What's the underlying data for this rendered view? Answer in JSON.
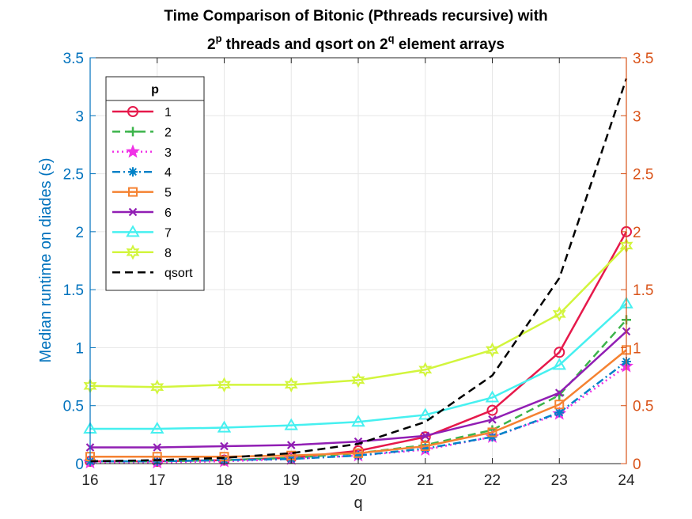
{
  "chart_data": {
    "type": "line",
    "title_line1": "Time Comparison of Bitonic (Pthreads recursive) with",
    "title_line2": {
      "part1": "2",
      "sup1": "p",
      "part2": " threads and qsort on 2",
      "sup2": "q",
      "part3": " element arrays"
    },
    "xlabel": "q",
    "ylabel": "Median runtime on diades (s)",
    "x": [
      16,
      17,
      18,
      19,
      20,
      21,
      22,
      23,
      24
    ],
    "xlim": [
      16,
      24
    ],
    "ylim": [
      0,
      3.5
    ],
    "xticks": [
      "16",
      "17",
      "18",
      "19",
      "20",
      "21",
      "22",
      "23",
      "24"
    ],
    "yticks_left": [
      "0",
      "0.5",
      "1",
      "1.5",
      "2",
      "2.5",
      "3",
      "3.5"
    ],
    "yticks_right": [
      "0",
      "0.5",
      "1",
      "1.5",
      "2",
      "2.5",
      "3",
      "3.5"
    ],
    "grid": true,
    "legend_title": "p",
    "legend_location": "top-left",
    "colors": {
      "left_axis": "#0072BD",
      "right_axis": "#D95319",
      "grid": "#e6e6e6"
    },
    "series": [
      {
        "name": "1",
        "color": "#E6194B",
        "dash": "solid",
        "marker": "circle",
        "values": [
          0.02,
          0.02,
          0.03,
          0.05,
          0.11,
          0.23,
          0.46,
          0.96,
          2.0
        ]
      },
      {
        "name": "2",
        "color": "#3CB44B",
        "dash": "dashed",
        "marker": "plus",
        "values": [
          0.02,
          0.02,
          0.03,
          0.05,
          0.09,
          0.16,
          0.29,
          0.59,
          1.24
        ]
      },
      {
        "name": "3",
        "color": "#F032E6",
        "dash": "dotted",
        "marker": "star",
        "values": [
          0.01,
          0.01,
          0.02,
          0.04,
          0.07,
          0.12,
          0.23,
          0.43,
          0.84
        ]
      },
      {
        "name": "4",
        "color": "#0082C8",
        "dash": "dashdot",
        "marker": "asterisk",
        "values": [
          0.02,
          0.02,
          0.03,
          0.04,
          0.07,
          0.13,
          0.23,
          0.44,
          0.88
        ]
      },
      {
        "name": "5",
        "color": "#F58231",
        "dash": "solid",
        "marker": "square",
        "values": [
          0.06,
          0.06,
          0.06,
          0.07,
          0.09,
          0.15,
          0.27,
          0.51,
          0.98
        ]
      },
      {
        "name": "6",
        "color": "#911EB4",
        "dash": "solid",
        "marker": "x",
        "values": [
          0.14,
          0.14,
          0.15,
          0.16,
          0.19,
          0.24,
          0.38,
          0.61,
          1.14
        ]
      },
      {
        "name": "7",
        "color": "#46F0F0",
        "dash": "solid",
        "marker": "triangle",
        "values": [
          0.3,
          0.3,
          0.31,
          0.33,
          0.36,
          0.42,
          0.57,
          0.85,
          1.38
        ]
      },
      {
        "name": "8",
        "color": "#D2F53C",
        "dash": "solid",
        "marker": "hexagram",
        "values": [
          0.67,
          0.66,
          0.68,
          0.68,
          0.72,
          0.81,
          0.98,
          1.29,
          1.88
        ]
      },
      {
        "name": "qsort",
        "color": "#000000",
        "dash": "dashed",
        "marker": "none",
        "values": [
          0.02,
          0.03,
          0.05,
          0.09,
          0.17,
          0.36,
          0.76,
          1.6,
          3.32
        ]
      }
    ]
  }
}
